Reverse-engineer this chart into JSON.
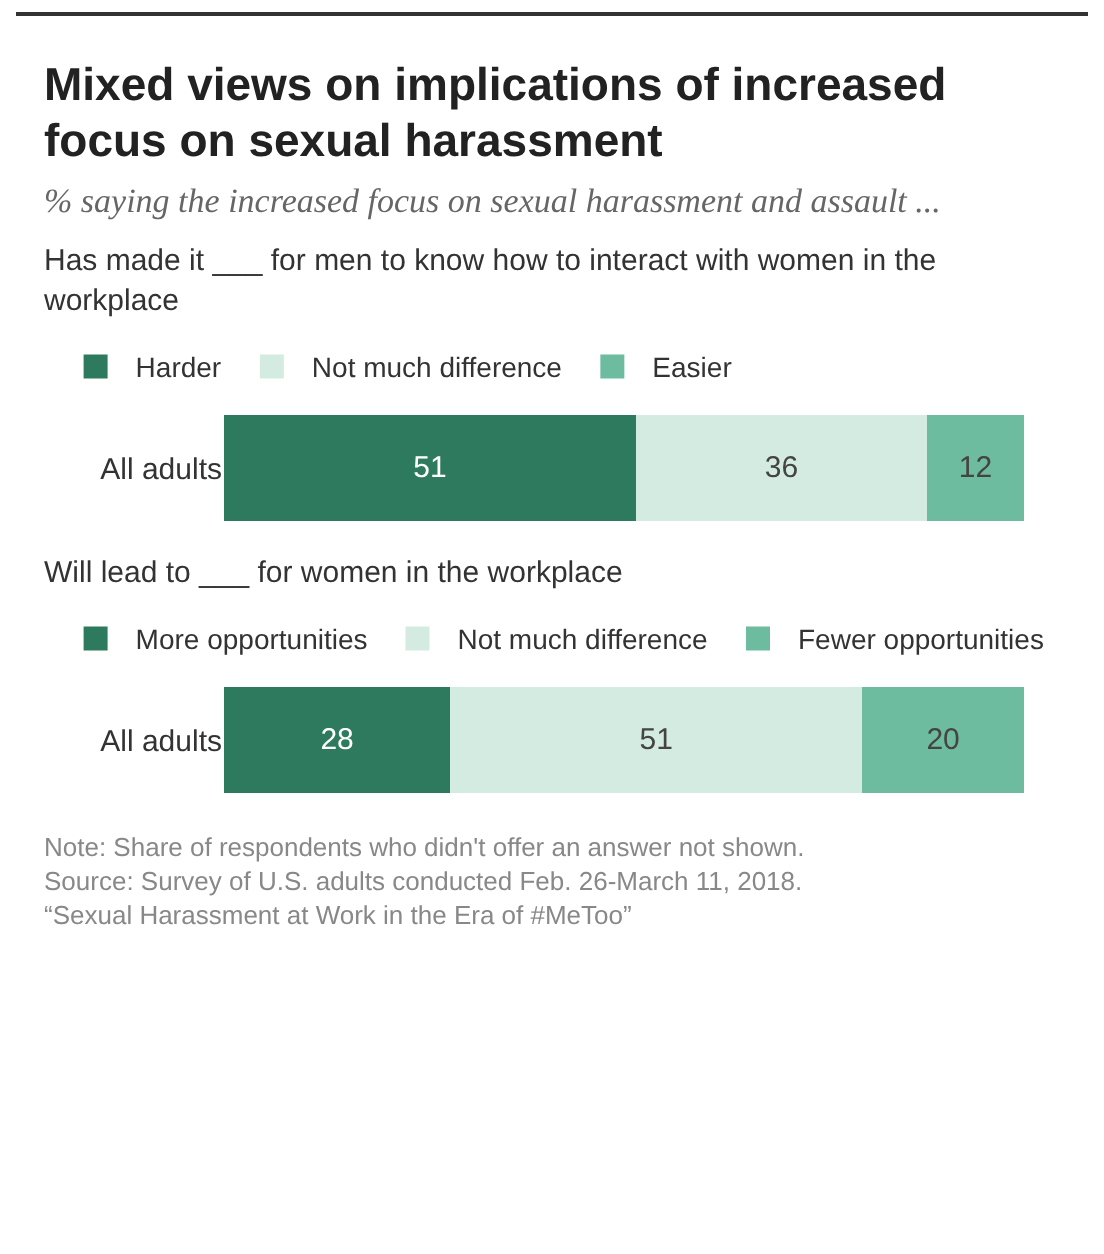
{
  "chart_data": [
    {
      "type": "bar",
      "title": "Mixed views on implications of increased focus on sexual harassment",
      "subtitle": "% saying the increased focus on sexual harassment and assault ...",
      "annotations": [
        "Has made it ___ for men to know how to interact with women in the workplace"
      ],
      "orientation": "horizontal",
      "stacked": true,
      "categories": [
        "All adults"
      ],
      "series": [
        {
          "name": "Harder",
          "color": "#2e7a5e",
          "values": [
            51
          ]
        },
        {
          "name": "Not much difference",
          "color": "#d4ebe2",
          "values": [
            36
          ]
        },
        {
          "name": "Easier",
          "color": "#6dbca0",
          "values": [
            12
          ]
        }
      ],
      "data_labels": true,
      "legend": "top",
      "grid": false,
      "tick_labels": "y"
    },
    {
      "type": "bar",
      "title": "Will lead to ___ for women in the workplace",
      "annotations": [
        "Note: Share of respondents who didn't offer an answer not shown.",
        "Source: Survey of U.S. adults conducted Feb. 26-March 11, 2018.",
        "“Sexual Harassment at Work in the Era of #MeToo”"
      ],
      "orientation": "horizontal",
      "stacked": true,
      "categories": [
        "All adults"
      ],
      "series": [
        {
          "name": "More opportunities",
          "color": "#2e7a5e",
          "values": [
            28
          ]
        },
        {
          "name": "Not much difference",
          "color": "#d4ebe2",
          "values": [
            51
          ]
        },
        {
          "name": "Fewer opportunities",
          "color": "#6dbca0",
          "values": [
            20
          ]
        }
      ],
      "data_labels": true,
      "legend": "top",
      "grid": false,
      "tick_labels": "y"
    }
  ]
}
